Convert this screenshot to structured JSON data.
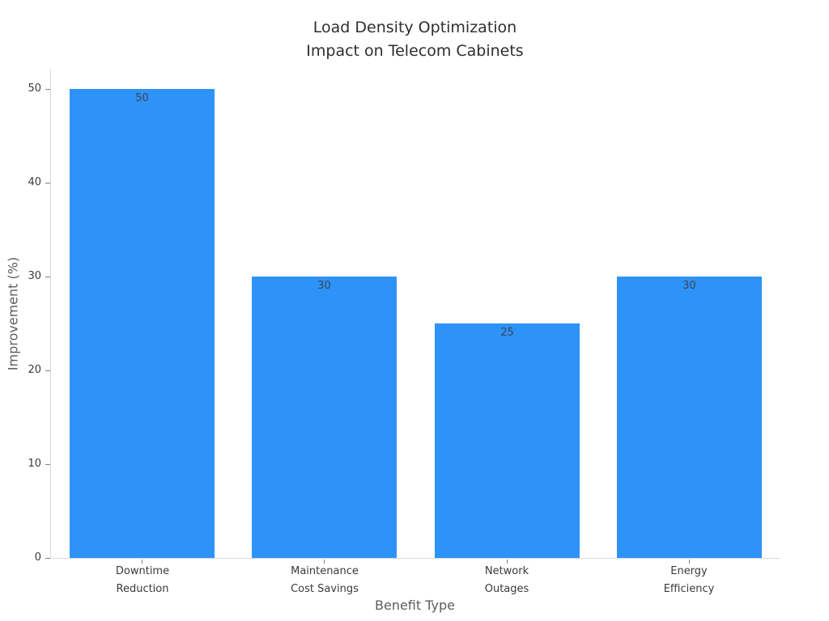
{
  "chart_data": {
    "type": "bar",
    "title": "Load Density Optimization\nImpact on Telecom Cabinets",
    "xlabel": "Benefit Type",
    "ylabel": "Improvement (%)",
    "categories": [
      "Downtime\nReduction",
      "Maintenance\nCost Savings",
      "Network\nOutages",
      "Energy\nEfficiency"
    ],
    "values": [
      50,
      30,
      25,
      30
    ],
    "value_labels": [
      "50",
      "30",
      "25",
      "30"
    ],
    "yticks": [
      0,
      10,
      20,
      30,
      40,
      50
    ],
    "ylim": [
      0,
      52.2
    ],
    "grid": false,
    "legend_position": "none",
    "colors": {
      "bar": "#2E93F8",
      "value_label": "#3d4652",
      "axis_line": "#d9d9d9",
      "tick_mark": "#808080",
      "tick_label": "#3a3a3a",
      "axis_label": "#5c5c5c",
      "title": "#2e2e2e",
      "background": "#ffffff"
    }
  }
}
